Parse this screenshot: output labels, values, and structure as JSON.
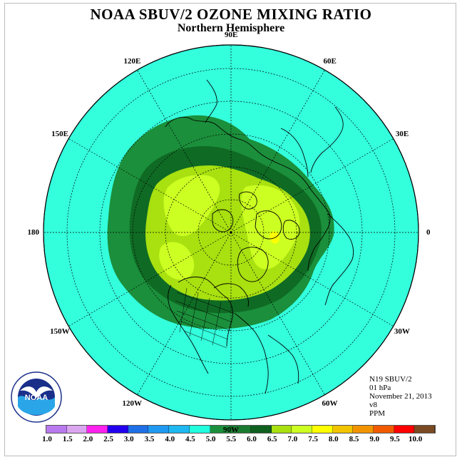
{
  "title": "NOAA SBUV/2 OZONE MIXING RATIO",
  "subtitle": "Northern Hemisphere",
  "longitude_labels": [
    {
      "text": "120E",
      "lon": 120
    },
    {
      "text": "90E",
      "lon": 90
    },
    {
      "text": "60E",
      "lon": 60
    },
    {
      "text": "30E",
      "lon": 30
    },
    {
      "text": "0",
      "lon": 0
    },
    {
      "text": "30W",
      "lon": -30
    },
    {
      "text": "60W",
      "lon": -60
    },
    {
      "text": "90W",
      "lon": -90
    },
    {
      "text": "120W",
      "lon": -120
    },
    {
      "text": "150W",
      "lon": -150
    },
    {
      "text": "180",
      "lon": 180
    },
    {
      "text": "150E",
      "lon": 150
    }
  ],
  "info": {
    "satellite": "N19 SBUV/2",
    "level": "01 hPa",
    "date": "November 21, 2013",
    "version": "v8",
    "units": "PPM"
  },
  "color_scale": {
    "ticks": [
      "1.0",
      "1.5",
      "2.0",
      "2.5",
      "3.0",
      "3.5",
      "4.0",
      "4.5",
      "5.0",
      "5.5",
      "6.0",
      "6.5",
      "7.0",
      "7.5",
      "8.0",
      "8.5",
      "9.0",
      "9.5",
      "10.0"
    ],
    "colors": [
      "#b87aee",
      "#dba6f0",
      "#ff22ee",
      "#2200ee",
      "#1f6fe6",
      "#1f9af0",
      "#1fb8f0",
      "#22ffdd",
      "#1b8f3b",
      "#1b7a2f",
      "#0f5f1f",
      "#a8e010",
      "#ccff22",
      "#ffff00",
      "#f2c400",
      "#f29400",
      "#f25a00",
      "#ff0000",
      "#7a4a22"
    ]
  },
  "map": {
    "background_color": "#33ffdd",
    "contours": [
      {
        "level": "5.0",
        "color": "#1b8f3b"
      },
      {
        "level": "5.5",
        "color": "#0f6a24"
      },
      {
        "level": "6.0",
        "color": "#a8e010"
      },
      {
        "level": "6.5",
        "color": "#ccff22"
      }
    ]
  },
  "logo": {
    "text": "NOAA",
    "icon": "noaa-logo-icon"
  }
}
